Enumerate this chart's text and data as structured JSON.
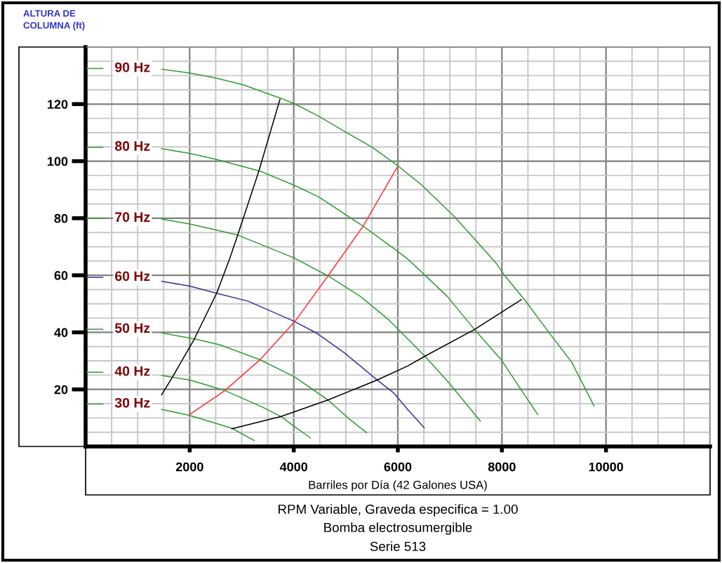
{
  "chart_data": {
    "type": "line",
    "ylabel": "ALTURA DE\nCOLUMNA (ft)",
    "xlabel": "Barriles por Día (42 Galones USA)",
    "xlim": [
      0,
      12000
    ],
    "ylim": [
      0,
      140
    ],
    "xticks": [
      2000,
      4000,
      6000,
      8000,
      10000
    ],
    "yticks": [
      20,
      40,
      60,
      80,
      100,
      120
    ],
    "grid": true,
    "marker": "none",
    "line_style": "solid",
    "series": [
      {
        "name": "90 Hz",
        "color": "#2e9e2e",
        "x": [
          0,
          330,
          900,
          1460,
          2000,
          2495,
          3036,
          3757,
          4005,
          4475,
          5015,
          5514,
          5986,
          6460,
          7090,
          7496,
          7901,
          8036,
          8441,
          8892,
          9342,
          9770
        ],
        "values": [
          132.5,
          132.5,
          null,
          132.2,
          130.9,
          129.2,
          126.7,
          122,
          120.2,
          115.8,
          110,
          104.8,
          98.6,
          91.6,
          80.5,
          72.3,
          64,
          60.3,
          51.3,
          40.2,
          29.5,
          14.2
        ]
      },
      {
        "name": "80 Hz",
        "color": "#2e9e2e",
        "x": [
          0,
          330,
          900,
          1460,
          2000,
          2495,
          3351,
          4005,
          4477,
          5333,
          5919,
          6189,
          6505,
          6955,
          7473,
          7991,
          8351,
          8689
        ],
        "values": [
          104.9,
          104.9,
          null,
          104.4,
          102.7,
          100.7,
          96.5,
          91.6,
          87.5,
          77.2,
          69.4,
          65.7,
          60.3,
          52.5,
          41,
          30.3,
          20.4,
          11.2
        ]
      },
      {
        "name": "70 Hz",
        "color": "#2e9e2e",
        "x": [
          0,
          330,
          900,
          1460,
          2000,
          2923,
          4005,
          4658,
          5288,
          5829,
          6189,
          6527,
          6955,
          7586
        ],
        "values": [
          80,
          80,
          null,
          79.7,
          78,
          74.1,
          66.1,
          59.8,
          52.5,
          44.3,
          37.7,
          31.5,
          22.9,
          8.9
        ]
      },
      {
        "name": "60 Hz",
        "color": "#333399",
        "x": [
          0,
          330,
          900,
          1460,
          2000,
          2518,
          3126,
          4005,
          4432,
          4973,
          5604,
          5919,
          6189,
          6505
        ],
        "values": [
          59.3,
          59.3,
          null,
          57.9,
          56.2,
          53.7,
          50.9,
          43.9,
          39.8,
          32.8,
          23.3,
          18.8,
          13,
          6.6
        ]
      },
      {
        "name": "50 Hz",
        "color": "#2e9e2e",
        "x": [
          0,
          330,
          900,
          1460,
          2090,
          2585,
          3351,
          4005,
          4658,
          5063,
          5401
        ],
        "values": [
          41.1,
          41.1,
          null,
          39.8,
          37.7,
          35.6,
          30.4,
          24.5,
          16.3,
          9.7,
          4.8
        ]
      },
      {
        "name": "40 Hz",
        "color": "#2e9e2e",
        "x": [
          0,
          330,
          900,
          1460,
          2000,
          2676,
          3396,
          3757,
          4027,
          4320
        ],
        "values": [
          26,
          26,
          null,
          24.9,
          23.3,
          19.6,
          13.8,
          10.5,
          6.8,
          3.0
        ]
      },
      {
        "name": "30 Hz",
        "color": "#2e9e2e",
        "x": [
          0,
          330,
          900,
          1460,
          2000,
          2811,
          3239
        ],
        "values": [
          14.9,
          14.9,
          null,
          13,
          10.9,
          6.4,
          2.1
        ]
      },
      {
        "color": "#ff3333",
        "x": [
          2000,
          2676,
          3351,
          4027,
          4658,
          5333,
          5986
        ],
        "values": [
          11.2,
          19.6,
          30.4,
          43.9,
          59.8,
          77.2,
          97.8
        ]
      },
      {
        "color": "#000000",
        "x": [
          1460,
          1662,
          2090,
          2518,
          2766,
          2923,
          3329,
          3734
        ],
        "values": [
          18.1,
          24.1,
          37.7,
          53.7,
          65.7,
          74.1,
          96.5,
          121.6
        ]
      },
      {
        "color": "#000000",
        "x": [
          2811,
          3757,
          4658,
          5604,
          6189,
          6505,
          7473,
          8374
        ],
        "values": [
          6.2,
          10.5,
          16.3,
          23.3,
          28.2,
          31.5,
          41,
          51.5
        ]
      }
    ],
    "annotations": [
      "RPM Variable, Graveda especifica = 1.00",
      "Bomba electrosumergible",
      "Serie 513"
    ]
  }
}
